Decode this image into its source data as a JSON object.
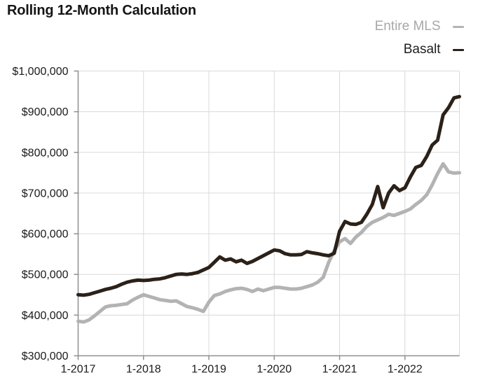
{
  "title": "Rolling 12-Month Calculation",
  "legend": {
    "entries": [
      {
        "label": "Entire MLS",
        "color": "#b3b3b3"
      },
      {
        "label": "Basalt",
        "color": "#2b2119"
      }
    ]
  },
  "colors": {
    "basalt_line": "#2b2119",
    "mls_line": "#b3b3b3",
    "grid": "#dadada",
    "axis": "#8f8f8f",
    "tick_text": "#1a1a1a",
    "background": "#ffffff"
  },
  "chart_data": {
    "type": "line",
    "title": "Rolling 12-Month Calculation",
    "xlabel": "",
    "ylabel": "",
    "ylim": [
      300000,
      1000000
    ],
    "grid": true,
    "legend_position": "top-right",
    "x_months": [
      "2017-01",
      "2017-02",
      "2017-03",
      "2017-04",
      "2017-05",
      "2017-06",
      "2017-07",
      "2017-08",
      "2017-09",
      "2017-10",
      "2017-11",
      "2017-12",
      "2018-01",
      "2018-02",
      "2018-03",
      "2018-04",
      "2018-05",
      "2018-06",
      "2018-07",
      "2018-08",
      "2018-09",
      "2018-10",
      "2018-11",
      "2018-12",
      "2019-01",
      "2019-02",
      "2019-03",
      "2019-04",
      "2019-05",
      "2019-06",
      "2019-07",
      "2019-08",
      "2019-09",
      "2019-10",
      "2019-11",
      "2019-12",
      "2020-01",
      "2020-02",
      "2020-03",
      "2020-04",
      "2020-05",
      "2020-06",
      "2020-07",
      "2020-08",
      "2020-09",
      "2020-10",
      "2020-11",
      "2020-12",
      "2021-01",
      "2021-02",
      "2021-03",
      "2021-04",
      "2021-05",
      "2021-06",
      "2021-07",
      "2021-08",
      "2021-09",
      "2021-10",
      "2021-11",
      "2021-12",
      "2022-01",
      "2022-02",
      "2022-03",
      "2022-04",
      "2022-05",
      "2022-06",
      "2022-07",
      "2022-08",
      "2022-09",
      "2022-10",
      "2022-11"
    ],
    "x_tick_indices": [
      0,
      12,
      24,
      36,
      48,
      60
    ],
    "x_tick_labels": [
      "1-2017",
      "1-2018",
      "1-2019",
      "1-2020",
      "1-2021",
      "1-2022"
    ],
    "y_ticks": [
      300000,
      400000,
      500000,
      600000,
      700000,
      800000,
      900000,
      1000000
    ],
    "y_tick_labels": [
      "$300,000",
      "$400,000",
      "$500,000",
      "$600,000",
      "$700,000",
      "$800,000",
      "$900,000",
      "$1,000,000"
    ],
    "series": [
      {
        "name": "Entire MLS",
        "color": "#b3b3b3",
        "values": [
          385000,
          383000,
          388000,
          398000,
          409000,
          420000,
          423000,
          424000,
          426000,
          428000,
          437000,
          444000,
          450000,
          446000,
          442000,
          438000,
          436000,
          434000,
          435000,
          428000,
          421000,
          418000,
          414000,
          409000,
          432000,
          448000,
          452000,
          458000,
          462000,
          465000,
          466000,
          463000,
          458000,
          464000,
          460000,
          464000,
          468000,
          468000,
          466000,
          464000,
          464000,
          466000,
          470000,
          474000,
          481000,
          493000,
          530000,
          558000,
          580000,
          588000,
          576000,
          592000,
          603000,
          618000,
          628000,
          634000,
          640000,
          648000,
          645000,
          650000,
          655000,
          661000,
          672000,
          682000,
          696000,
          720000,
          748000,
          772000,
          752000,
          749000,
          750000
        ]
      },
      {
        "name": "Basalt",
        "color": "#2b2119",
        "values": [
          450000,
          449000,
          451000,
          455000,
          459000,
          463000,
          466000,
          470000,
          476000,
          481000,
          484000,
          486000,
          485000,
          486000,
          488000,
          489000,
          492000,
          496000,
          500000,
          501000,
          500000,
          502000,
          505000,
          511000,
          517000,
          530000,
          543000,
          535000,
          538000,
          531000,
          535000,
          527000,
          532000,
          539000,
          546000,
          553000,
          560000,
          558000,
          551000,
          548000,
          548000,
          549000,
          556000,
          553000,
          551000,
          548000,
          546000,
          552000,
          606000,
          630000,
          624000,
          623000,
          628000,
          648000,
          672000,
          716000,
          664000,
          700000,
          718000,
          706000,
          713000,
          740000,
          763000,
          768000,
          790000,
          818000,
          830000,
          892000,
          910000,
          934000,
          937000
        ]
      }
    ]
  }
}
